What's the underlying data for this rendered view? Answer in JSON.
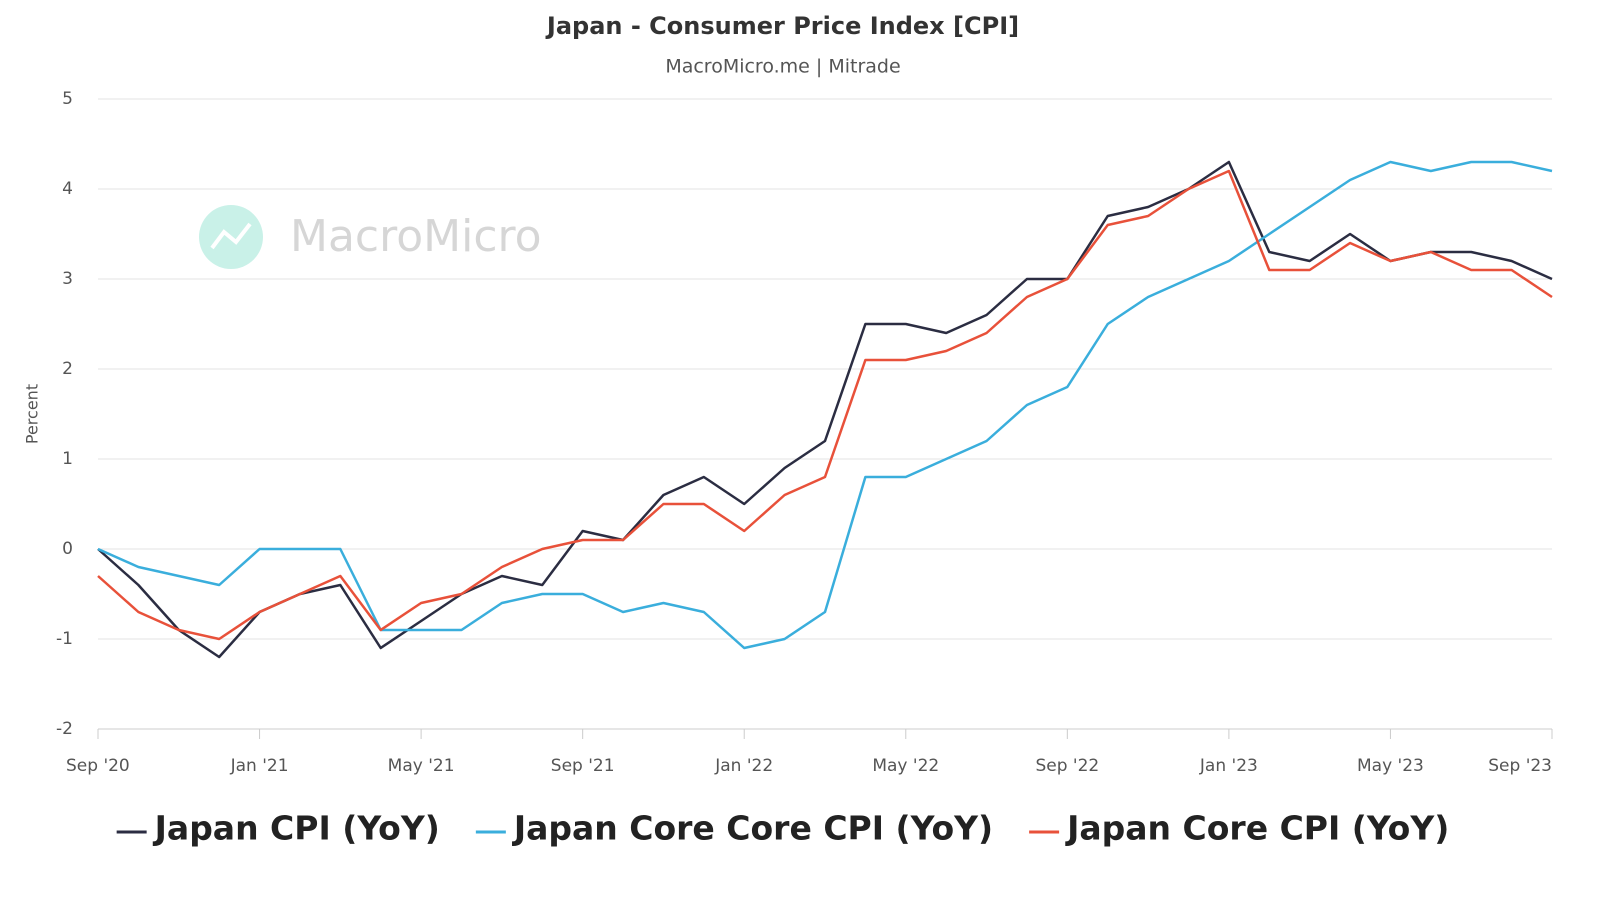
{
  "chart_data": {
    "type": "line",
    "title": "Japan - Consumer Price Index [CPI]",
    "subtitle": "MacroMicro.me | Mitrade",
    "watermark": "MacroMicro",
    "y_label": "Percent",
    "categories": [
      "Sep '20",
      null,
      null,
      null,
      "Jan '21",
      null,
      null,
      null,
      "May '21",
      null,
      null,
      null,
      "Sep '21",
      null,
      null,
      null,
      "Jan '22",
      null,
      null,
      null,
      "May '22",
      null,
      null,
      null,
      "Sep '22",
      null,
      null,
      null,
      "Jan '23",
      null,
      null,
      null,
      "May '23",
      null,
      null,
      null,
      "Sep '23"
    ],
    "series": [
      {
        "name": "Japan CPI (YoY)",
        "color": "#2b2d42",
        "values": [
          0,
          -0.4,
          -0.9,
          -1.2,
          -0.7,
          -0.5,
          -0.4,
          -1.1,
          -0.8,
          -0.5,
          -0.3,
          -0.4,
          0.2,
          0.1,
          0.6,
          0.8,
          0.5,
          0.9,
          1.2,
          2.5,
          2.5,
          2.4,
          2.6,
          3.0,
          3.0,
          3.7,
          3.8,
          4.0,
          4.3,
          3.3,
          3.2,
          3.5,
          3.2,
          3.3,
          3.3,
          3.2,
          3.0
        ]
      },
      {
        "name": "Japan Core Core CPI (YoY)",
        "color": "#3aaedc",
        "values": [
          0,
          -0.2,
          -0.3,
          -0.4,
          0,
          0,
          0,
          -0.9,
          -0.9,
          -0.9,
          -0.6,
          -0.5,
          -0.5,
          -0.7,
          -0.6,
          -0.7,
          -1.1,
          -1.0,
          -0.7,
          0.8,
          0.8,
          1.0,
          1.2,
          1.6,
          1.8,
          2.5,
          2.8,
          3.0,
          3.2,
          3.5,
          3.8,
          4.1,
          4.3,
          4.2,
          4.3,
          4.3,
          4.2
        ]
      },
      {
        "name": "Japan Core CPI (YoY)",
        "color": "#e8513a",
        "values": [
          -0.3,
          -0.7,
          -0.9,
          -1.0,
          -0.7,
          -0.5,
          -0.3,
          -0.9,
          -0.6,
          -0.5,
          -0.2,
          0,
          0.1,
          0.1,
          0.5,
          0.5,
          0.2,
          0.6,
          0.8,
          2.1,
          2.1,
          2.2,
          2.4,
          2.8,
          3.0,
          3.6,
          3.7,
          4.0,
          4.2,
          3.1,
          3.1,
          3.4,
          3.2,
          3.3,
          3.1,
          3.1,
          2.8
        ]
      }
    ],
    "ylim": [
      -2,
      5
    ],
    "yticks": [
      -2,
      -1,
      0,
      1,
      2,
      3,
      4,
      5
    ],
    "grid": true,
    "legend": "bottom"
  }
}
